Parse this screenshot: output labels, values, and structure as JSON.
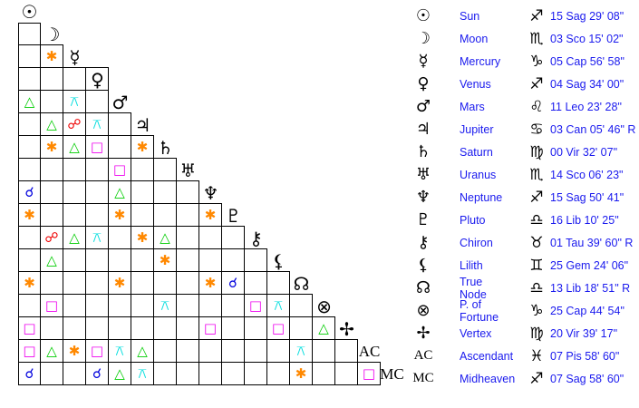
{
  "colors": {
    "conjunction": "#0000dd",
    "sextile": "#ff8800",
    "square": "#ee00ee",
    "trine": "#00cc00",
    "opposition": "#ee0000",
    "quincunx": "#00dddd"
  },
  "aspect_symbols": {
    "con": "☌",
    "sex": "✱",
    "sqr": "□",
    "tri": "△",
    "opp": "☍",
    "qcx": "⚻"
  },
  "aspect_names": {
    "con": "conjunction",
    "sex": "sextile",
    "sqr": "square",
    "tri": "trine",
    "opp": "opposition",
    "qcx": "quincunx"
  },
  "planets": [
    {
      "glyph": "☉",
      "name": "Sun",
      "sign_glyph": "♐",
      "position": "15 Sag 29' 08\""
    },
    {
      "glyph": "☽",
      "name": "Moon",
      "sign_glyph": "♏",
      "position": "03 Sco 15' 02\""
    },
    {
      "glyph": "☿",
      "name": "Mercury",
      "sign_glyph": "♑",
      "position": "05 Cap 56' 58\""
    },
    {
      "glyph": "♀",
      "name": "Venus",
      "sign_glyph": "♐",
      "position": "04 Sag 34' 00\""
    },
    {
      "glyph": "♂",
      "name": "Mars",
      "sign_glyph": "♌",
      "position": "11 Leo 23' 28\""
    },
    {
      "glyph": "♃",
      "name": "Jupiter",
      "sign_glyph": "♋",
      "position": "03 Can 05' 46\" R"
    },
    {
      "glyph": "♄",
      "name": "Saturn",
      "sign_glyph": "♍",
      "position": "00 Vir 32' 07\""
    },
    {
      "glyph": "♅",
      "name": "Uranus",
      "sign_glyph": "♏",
      "position": "14 Sco 06' 23\""
    },
    {
      "glyph": "♆",
      "name": "Neptune",
      "sign_glyph": "♐",
      "position": "15 Sag 50' 41\""
    },
    {
      "glyph": "♇",
      "name": "Pluto",
      "sign_glyph": "♎",
      "position": "16 Lib 10' 25\""
    },
    {
      "glyph": "⚷",
      "name": "Chiron",
      "sign_glyph": "♉",
      "position": "01 Tau 39' 60\" R"
    },
    {
      "glyph": "⚸",
      "name": "Lilith",
      "sign_glyph": "♊",
      "position": "25 Gem 24' 06\""
    },
    {
      "glyph": "☊",
      "name": "True Node",
      "sign_glyph": "♎",
      "position": "13 Lib 18' 51\" R"
    },
    {
      "glyph": "⊗",
      "name": "P. of Fortune",
      "sign_glyph": "♑",
      "position": "25 Cap 44' 54\""
    },
    {
      "glyph": "✢",
      "name": "Vertex",
      "sign_glyph": "♍",
      "position": "20 Vir 39' 17\""
    },
    {
      "glyph": "AC",
      "name": "Ascendant",
      "sign_glyph": "♓",
      "position": "07 Pis 58' 60\""
    },
    {
      "glyph": "MC",
      "name": "Midheaven",
      "sign_glyph": "♐",
      "position": "07 Sag 58' 60\""
    }
  ],
  "aspect_grid": [
    [
      ""
    ],
    [
      "",
      "sex"
    ],
    [
      "",
      "",
      "",
      ""
    ],
    [
      "tri",
      "",
      "qcx",
      ""
    ],
    [
      "",
      "tri",
      "opp",
      "qcx",
      ""
    ],
    [
      "",
      "sex",
      "tri",
      "sqr",
      "",
      "sex"
    ],
    [
      "",
      "",
      "",
      "",
      "sqr",
      "",
      ""
    ],
    [
      "con",
      "",
      "",
      "",
      "tri",
      "",
      "",
      ""
    ],
    [
      "sex",
      "",
      "",
      "",
      "sex",
      "",
      "",
      "",
      "sex"
    ],
    [
      "",
      "opp",
      "tri",
      "qcx",
      "",
      "sex",
      "tri",
      "",
      "",
      ""
    ],
    [
      "",
      "tri",
      "",
      "",
      "",
      "",
      "sex",
      "",
      "",
      "",
      ""
    ],
    [
      "sex",
      "",
      "",
      "",
      "sex",
      "",
      "",
      "",
      "sex",
      "con",
      "",
      ""
    ],
    [
      "",
      "sqr",
      "",
      "",
      "",
      "",
      "qcx",
      "",
      "",
      "",
      "sqr",
      "qcx",
      ""
    ],
    [
      "sqr",
      "",
      "",
      "",
      "",
      "",
      "",
      "",
      "sqr",
      "",
      "",
      "sqr",
      "",
      "tri"
    ],
    [
      "sqr",
      "tri",
      "sex",
      "sqr",
      "qcx",
      "tri",
      "",
      "",
      "",
      "",
      "",
      "",
      "qcx",
      "",
      ""
    ],
    [
      "con",
      "",
      "",
      "con",
      "tri",
      "qcx",
      "",
      "",
      "",
      "",
      "",
      "",
      "sex",
      "",
      "",
      "sqr"
    ]
  ]
}
